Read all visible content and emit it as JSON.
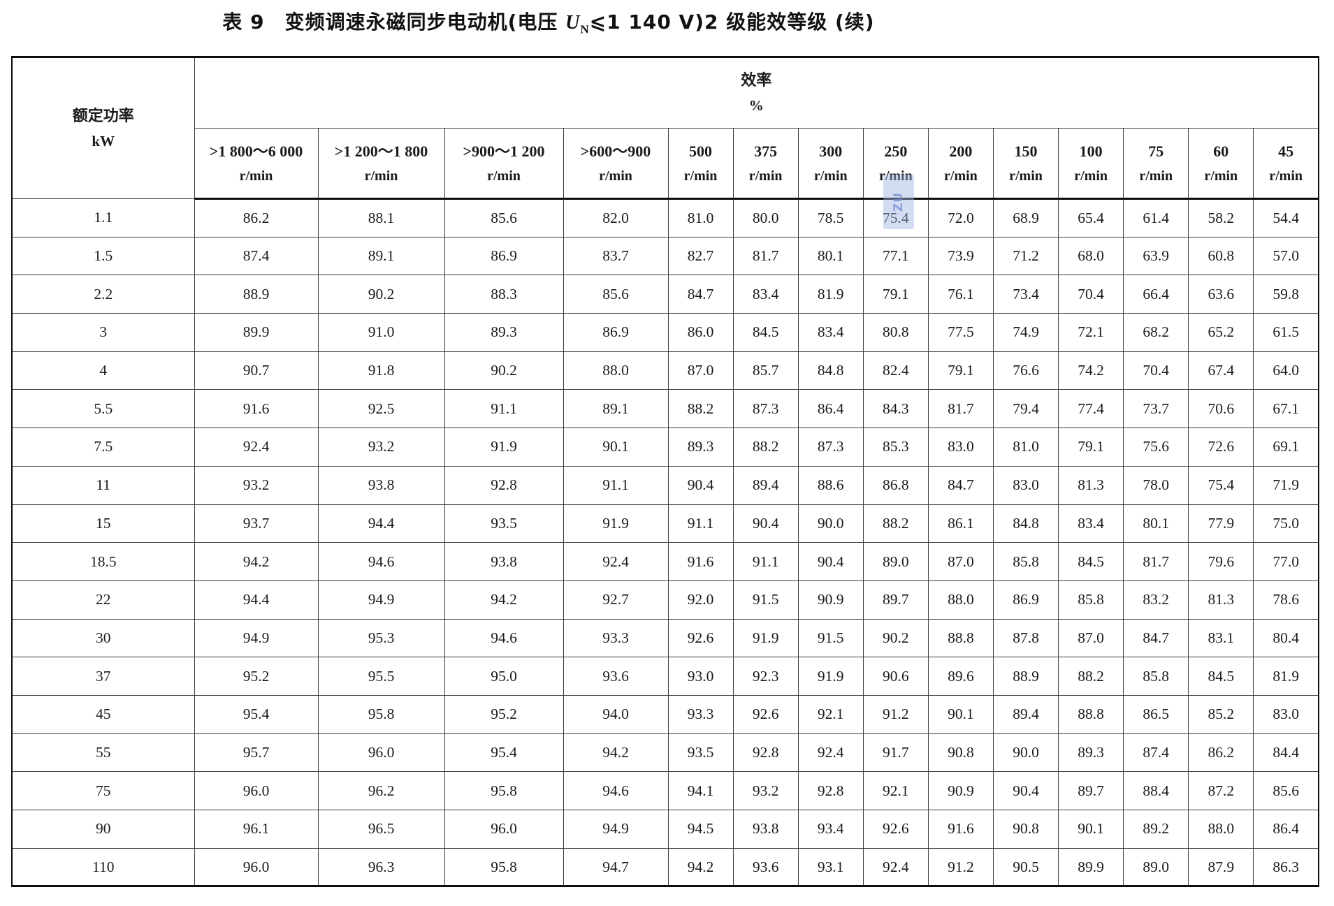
{
  "title": {
    "part1": "表 9　变频调速永磁同步电动机(电压 ",
    "u_symbol": "U",
    "u_subscript": "N",
    "part2": "⩽1 140 V)2 级能效等级 (续)"
  },
  "header": {
    "power_label": "额定功率",
    "power_unit": "kW",
    "efficiency_label": "效率",
    "efficiency_unit": "%",
    "speed_columns": [
      {
        "range": ">1 800～6 000",
        "unit": "r/min"
      },
      {
        "range": ">1 200～1 800",
        "unit": "r/min"
      },
      {
        "range": ">900～1 200",
        "unit": "r/min"
      },
      {
        "range": ">600～900",
        "unit": "r/min"
      },
      {
        "range": "500",
        "unit": "r/min"
      },
      {
        "range": "375",
        "unit": "r/min"
      },
      {
        "range": "300",
        "unit": "r/min"
      },
      {
        "range": "250",
        "unit": "r/min"
      },
      {
        "range": "200",
        "unit": "r/min"
      },
      {
        "range": "150",
        "unit": "r/min"
      },
      {
        "range": "100",
        "unit": "r/min"
      },
      {
        "range": "75",
        "unit": "r/min"
      },
      {
        "range": "60",
        "unit": "r/min"
      },
      {
        "range": "45",
        "unit": "r/min"
      }
    ]
  },
  "rows": [
    {
      "power": "1.1",
      "values": [
        "86.2",
        "88.1",
        "85.6",
        "82.0",
        "81.0",
        "80.0",
        "78.5",
        "75.4",
        "72.0",
        "68.9",
        "65.4",
        "61.4",
        "58.2",
        "54.4"
      ]
    },
    {
      "power": "1.5",
      "values": [
        "87.4",
        "89.1",
        "86.9",
        "83.7",
        "82.7",
        "81.7",
        "80.1",
        "77.1",
        "73.9",
        "71.2",
        "68.0",
        "63.9",
        "60.8",
        "57.0"
      ]
    },
    {
      "power": "2.2",
      "values": [
        "88.9",
        "90.2",
        "88.3",
        "85.6",
        "84.7",
        "83.4",
        "81.9",
        "79.1",
        "76.1",
        "73.4",
        "70.4",
        "66.4",
        "63.6",
        "59.8"
      ]
    },
    {
      "power": "3",
      "values": [
        "89.9",
        "91.0",
        "89.3",
        "86.9",
        "86.0",
        "84.5",
        "83.4",
        "80.8",
        "77.5",
        "74.9",
        "72.1",
        "68.2",
        "65.2",
        "61.5"
      ]
    },
    {
      "power": "4",
      "values": [
        "90.7",
        "91.8",
        "90.2",
        "88.0",
        "87.0",
        "85.7",
        "84.8",
        "82.4",
        "79.1",
        "76.6",
        "74.2",
        "70.4",
        "67.4",
        "64.0"
      ]
    },
    {
      "power": "5.5",
      "values": [
        "91.6",
        "92.5",
        "91.1",
        "89.1",
        "88.2",
        "87.3",
        "86.4",
        "84.3",
        "81.7",
        "79.4",
        "77.4",
        "73.7",
        "70.6",
        "67.1"
      ]
    },
    {
      "power": "7.5",
      "values": [
        "92.4",
        "93.2",
        "91.9",
        "90.1",
        "89.3",
        "88.2",
        "87.3",
        "85.3",
        "83.0",
        "81.0",
        "79.1",
        "75.6",
        "72.6",
        "69.1"
      ]
    },
    {
      "power": "11",
      "values": [
        "93.2",
        "93.8",
        "92.8",
        "91.1",
        "90.4",
        "89.4",
        "88.6",
        "86.8",
        "84.7",
        "83.0",
        "81.3",
        "78.0",
        "75.4",
        "71.9"
      ]
    },
    {
      "power": "15",
      "values": [
        "93.7",
        "94.4",
        "93.5",
        "91.9",
        "91.1",
        "90.4",
        "90.0",
        "88.2",
        "86.1",
        "84.8",
        "83.4",
        "80.1",
        "77.9",
        "75.0"
      ]
    },
    {
      "power": "18.5",
      "values": [
        "94.2",
        "94.6",
        "93.8",
        "92.4",
        "91.6",
        "91.1",
        "90.4",
        "89.0",
        "87.0",
        "85.8",
        "84.5",
        "81.7",
        "79.6",
        "77.0"
      ]
    },
    {
      "power": "22",
      "values": [
        "94.4",
        "94.9",
        "94.2",
        "92.7",
        "92.0",
        "91.5",
        "90.9",
        "89.7",
        "88.0",
        "86.9",
        "85.8",
        "83.2",
        "81.3",
        "78.6"
      ]
    },
    {
      "power": "30",
      "values": [
        "94.9",
        "95.3",
        "94.6",
        "93.3",
        "92.6",
        "91.9",
        "91.5",
        "90.2",
        "88.8",
        "87.8",
        "87.0",
        "84.7",
        "83.1",
        "80.4"
      ]
    },
    {
      "power": "37",
      "values": [
        "95.2",
        "95.5",
        "95.0",
        "93.6",
        "93.0",
        "92.3",
        "91.9",
        "90.6",
        "89.6",
        "88.9",
        "88.2",
        "85.8",
        "84.5",
        "81.9"
      ]
    },
    {
      "power": "45",
      "values": [
        "95.4",
        "95.8",
        "95.2",
        "94.0",
        "93.3",
        "92.6",
        "92.1",
        "91.2",
        "90.1",
        "89.4",
        "88.8",
        "86.5",
        "85.2",
        "83.0"
      ]
    },
    {
      "power": "55",
      "values": [
        "95.7",
        "96.0",
        "95.4",
        "94.2",
        "93.5",
        "92.8",
        "92.4",
        "91.7",
        "90.8",
        "90.0",
        "89.3",
        "87.4",
        "86.2",
        "84.4"
      ]
    },
    {
      "power": "75",
      "values": [
        "96.0",
        "96.2",
        "95.8",
        "94.6",
        "94.1",
        "93.2",
        "92.8",
        "92.1",
        "90.9",
        "90.4",
        "89.7",
        "88.4",
        "87.2",
        "85.6"
      ]
    },
    {
      "power": "90",
      "values": [
        "96.1",
        "96.5",
        "96.0",
        "94.9",
        "94.5",
        "93.8",
        "93.4",
        "92.6",
        "91.6",
        "90.8",
        "90.1",
        "89.2",
        "88.0",
        "86.4"
      ]
    },
    {
      "power": "110",
      "values": [
        "96.0",
        "96.3",
        "95.8",
        "94.7",
        "94.2",
        "93.6",
        "93.1",
        "92.4",
        "91.2",
        "90.5",
        "89.9",
        "89.0",
        "87.9",
        "86.3"
      ]
    }
  ],
  "watermark": {
    "text": "ZU"
  }
}
